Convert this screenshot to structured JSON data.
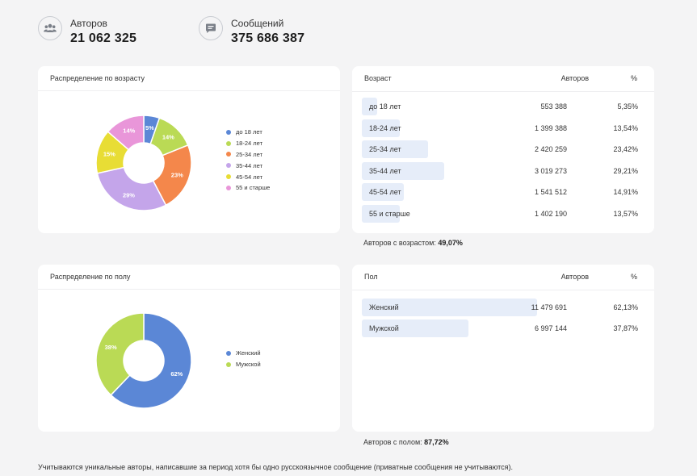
{
  "stats": [
    {
      "label": "Авторов",
      "value": "21 062 325",
      "icon": "users-icon"
    },
    {
      "label": "Сообщений",
      "value": "375 686 387",
      "icon": "message-icon"
    }
  ],
  "age_chart": {
    "title": "Распределение по возрасту"
  },
  "gender_chart": {
    "title": "Распределение по полу"
  },
  "age_table": {
    "col_group": "Возраст",
    "col_count": "Авторов",
    "col_pct": "%",
    "summary_label": "Авторов с возрастом:",
    "summary_value": "49,07%",
    "rows": [
      {
        "name": "до 18 лет",
        "count": "553 388",
        "pct": "5,35%"
      },
      {
        "name": "18-24 лет",
        "count": "1 399 388",
        "pct": "13,54%"
      },
      {
        "name": "25-34 лет",
        "count": "2 420 259",
        "pct": "23,42%"
      },
      {
        "name": "35-44 лет",
        "count": "3 019 273",
        "pct": "29,21%"
      },
      {
        "name": "45-54 лет",
        "count": "1 541 512",
        "pct": "14,91%"
      },
      {
        "name": "55 и старше",
        "count": "1 402 190",
        "pct": "13,57%"
      }
    ]
  },
  "gender_table": {
    "col_group": "Пол",
    "col_count": "Авторов",
    "col_pct": "%",
    "summary_label": "Авторов с полом:",
    "summary_value": "87,72%",
    "rows": [
      {
        "name": "Женский",
        "count": "11 479 691",
        "pct": "62,13%"
      },
      {
        "name": "Мужской",
        "count": "6 997 144",
        "pct": "37,87%"
      }
    ]
  },
  "footer": "Учитываются уникальные авторы, написавшие за период хотя бы одно русскоязычное сообщение (приватные сообщения не учитываются).",
  "chart_data": [
    {
      "type": "pie",
      "title": "Распределение по возрасту",
      "categories": [
        "до 18 лет",
        "18-24 лет",
        "25-34 лет",
        "35-44 лет",
        "45-54 лет",
        "55 и старше"
      ],
      "values": [
        5.35,
        13.54,
        23.42,
        29.21,
        14.91,
        13.57
      ],
      "labels": [
        "5%",
        "14%",
        "23%",
        "29%",
        "15%",
        "14%"
      ],
      "colors": [
        "#5b87d6",
        "#bada55",
        "#f4874b",
        "#c4a5ea",
        "#e8dd35",
        "#e996d9"
      ],
      "legend": "right"
    },
    {
      "type": "pie",
      "title": "Распределение по полу",
      "categories": [
        "Женский",
        "Мужской"
      ],
      "values": [
        62.13,
        37.87
      ],
      "labels": [
        "62%",
        "38%"
      ],
      "colors": [
        "#5b87d6",
        "#bada55"
      ],
      "legend": "right"
    }
  ]
}
